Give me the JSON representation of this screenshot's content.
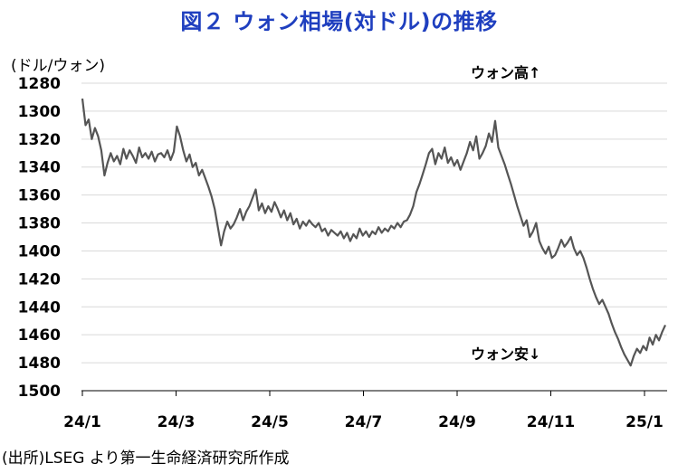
{
  "title": "図２ ウォン相場(対ドル)の推移",
  "unit": "(ドル/ウォン)",
  "source": "(出所)LSEG より第一生命経済研究所作成",
  "chart_data": {
    "type": "line",
    "ylim": [
      1500,
      1280
    ],
    "y_ticks": [
      "1280",
      "1300",
      "1320",
      "1340",
      "1360",
      "1380",
      "1400",
      "1420",
      "1440",
      "1460",
      "1480",
      "1500"
    ],
    "x_ticks": [
      "24/1",
      "24/3",
      "24/5",
      "24/7",
      "24/9",
      "24/11",
      "25/1"
    ],
    "grid": true,
    "line_color": "#555555",
    "annotations": {
      "top": "ウォン高↑",
      "bottom": "ウォン安↓"
    },
    "series": [
      {
        "values": [
          1291,
          1310,
          1306,
          1320,
          1312,
          1318,
          1328,
          1346,
          1337,
          1330,
          1336,
          1332,
          1338,
          1327,
          1334,
          1328,
          1332,
          1337,
          1326,
          1333,
          1330,
          1334,
          1329,
          1336,
          1331,
          1330,
          1333,
          1328,
          1335,
          1329,
          1311,
          1318,
          1328,
          1336,
          1331,
          1340,
          1337,
          1346,
          1342,
          1348,
          1354,
          1361,
          1370,
          1383,
          1396,
          1386,
          1379,
          1384,
          1381,
          1376,
          1370,
          1378,
          1372,
          1368,
          1362,
          1356,
          1371,
          1366,
          1373,
          1368,
          1372,
          1365,
          1370,
          1376,
          1371,
          1378,
          1373,
          1381,
          1377,
          1384,
          1379,
          1382,
          1378,
          1381,
          1383,
          1380,
          1386,
          1384,
          1389,
          1385,
          1387,
          1389,
          1386,
          1391,
          1387,
          1393,
          1388,
          1391,
          1384,
          1389,
          1386,
          1390,
          1386,
          1388,
          1383,
          1387,
          1384,
          1386,
          1382,
          1384,
          1380,
          1383,
          1379,
          1378,
          1374,
          1368,
          1358,
          1352,
          1345,
          1338,
          1330,
          1327,
          1338,
          1330,
          1334,
          1326,
          1337,
          1333,
          1339,
          1335,
          1342,
          1336,
          1330,
          1322,
          1328,
          1318,
          1334,
          1330,
          1325,
          1316,
          1322,
          1307,
          1326,
          1332,
          1338,
          1345,
          1352,
          1360,
          1368,
          1375,
          1382,
          1378,
          1390,
          1386,
          1380,
          1393,
          1398,
          1402,
          1397,
          1405,
          1403,
          1398,
          1392,
          1397,
          1394,
          1390,
          1398,
          1403,
          1400,
          1405,
          1412,
          1420,
          1427,
          1433,
          1438,
          1435,
          1440,
          1445,
          1452,
          1458,
          1463,
          1469,
          1474,
          1478,
          1482,
          1475,
          1470,
          1473,
          1468,
          1471,
          1462,
          1467,
          1460,
          1464,
          1458,
          1453
        ]
      }
    ]
  }
}
